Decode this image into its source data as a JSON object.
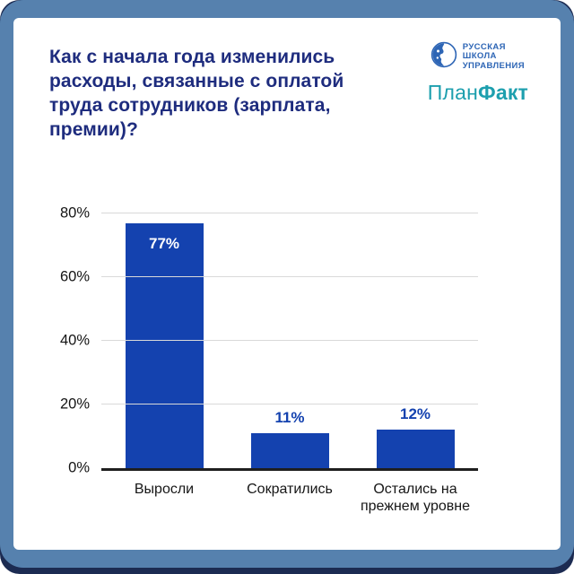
{
  "title": "Как с начала года изменились расходы, связанные с оплатой труда сотрудников (зарплата, премии)?",
  "logos": {
    "rsu": {
      "name": "Русская школа управления",
      "line1": "РУССКАЯ",
      "line2": "ШКОЛА",
      "line3": "УПРАВЛЕНИЯ",
      "color": "#2d65b5"
    },
    "planfact": {
      "name": "ПланФакт",
      "part1": "План",
      "part2": "Факт",
      "color": "#1d9fae"
    }
  },
  "chart_data": {
    "type": "bar",
    "title": "Как с начала года изменились расходы, связанные с оплатой труда сотрудников (зарплата, премии)?",
    "categories": [
      "Выросли",
      "Сократились",
      "Остались на прежнем уровне"
    ],
    "values": [
      77,
      11,
      12
    ],
    "value_labels": [
      "77%",
      "11%",
      "12%"
    ],
    "xlabel": "",
    "ylabel": "",
    "ylim": [
      0,
      80
    ],
    "yticks": [
      "0%",
      "20%",
      "40%",
      "60%",
      "80%"
    ],
    "grid": true,
    "legend": false,
    "bar_color": "#1442af",
    "value_label_inside_color": "#ffffff",
    "value_label_outside_color": "#1442af"
  },
  "colors": {
    "frame_outer_navy": "#1c2b52",
    "frame_blue": "#5681ae",
    "card_background": "#ffffff",
    "title_text": "#1e2c7e",
    "axis_text": "#141414",
    "gridline": "#d9d9d9",
    "axis_line": "#1f1f1f"
  }
}
